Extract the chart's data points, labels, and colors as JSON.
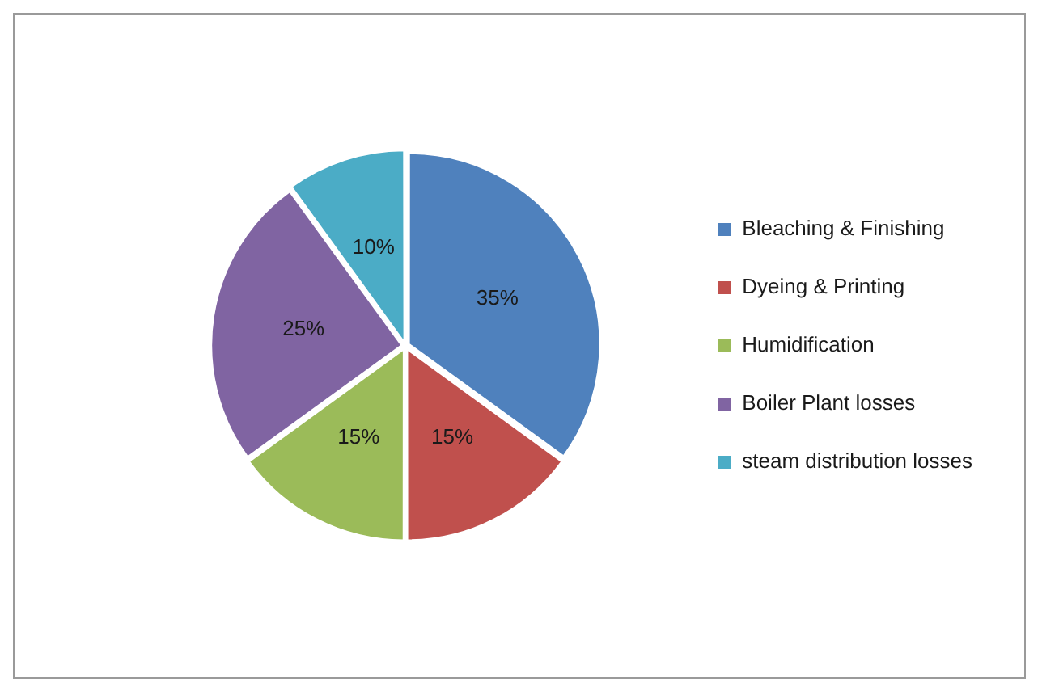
{
  "chart_data": {
    "type": "pie",
    "categories": [
      "Bleaching & Finishing",
      "Dyeing & Printing",
      "Humidification",
      "Boiler Plant losses",
      "steam distribution losses"
    ],
    "values": [
      35,
      15,
      15,
      25,
      10
    ],
    "colors": [
      "#4f81bd",
      "#c0504d",
      "#9bbb59",
      "#8064a2",
      "#4bacc6"
    ],
    "value_labels": [
      "35%",
      "15%",
      "15%",
      "25%",
      "10%"
    ],
    "legend": "right"
  }
}
